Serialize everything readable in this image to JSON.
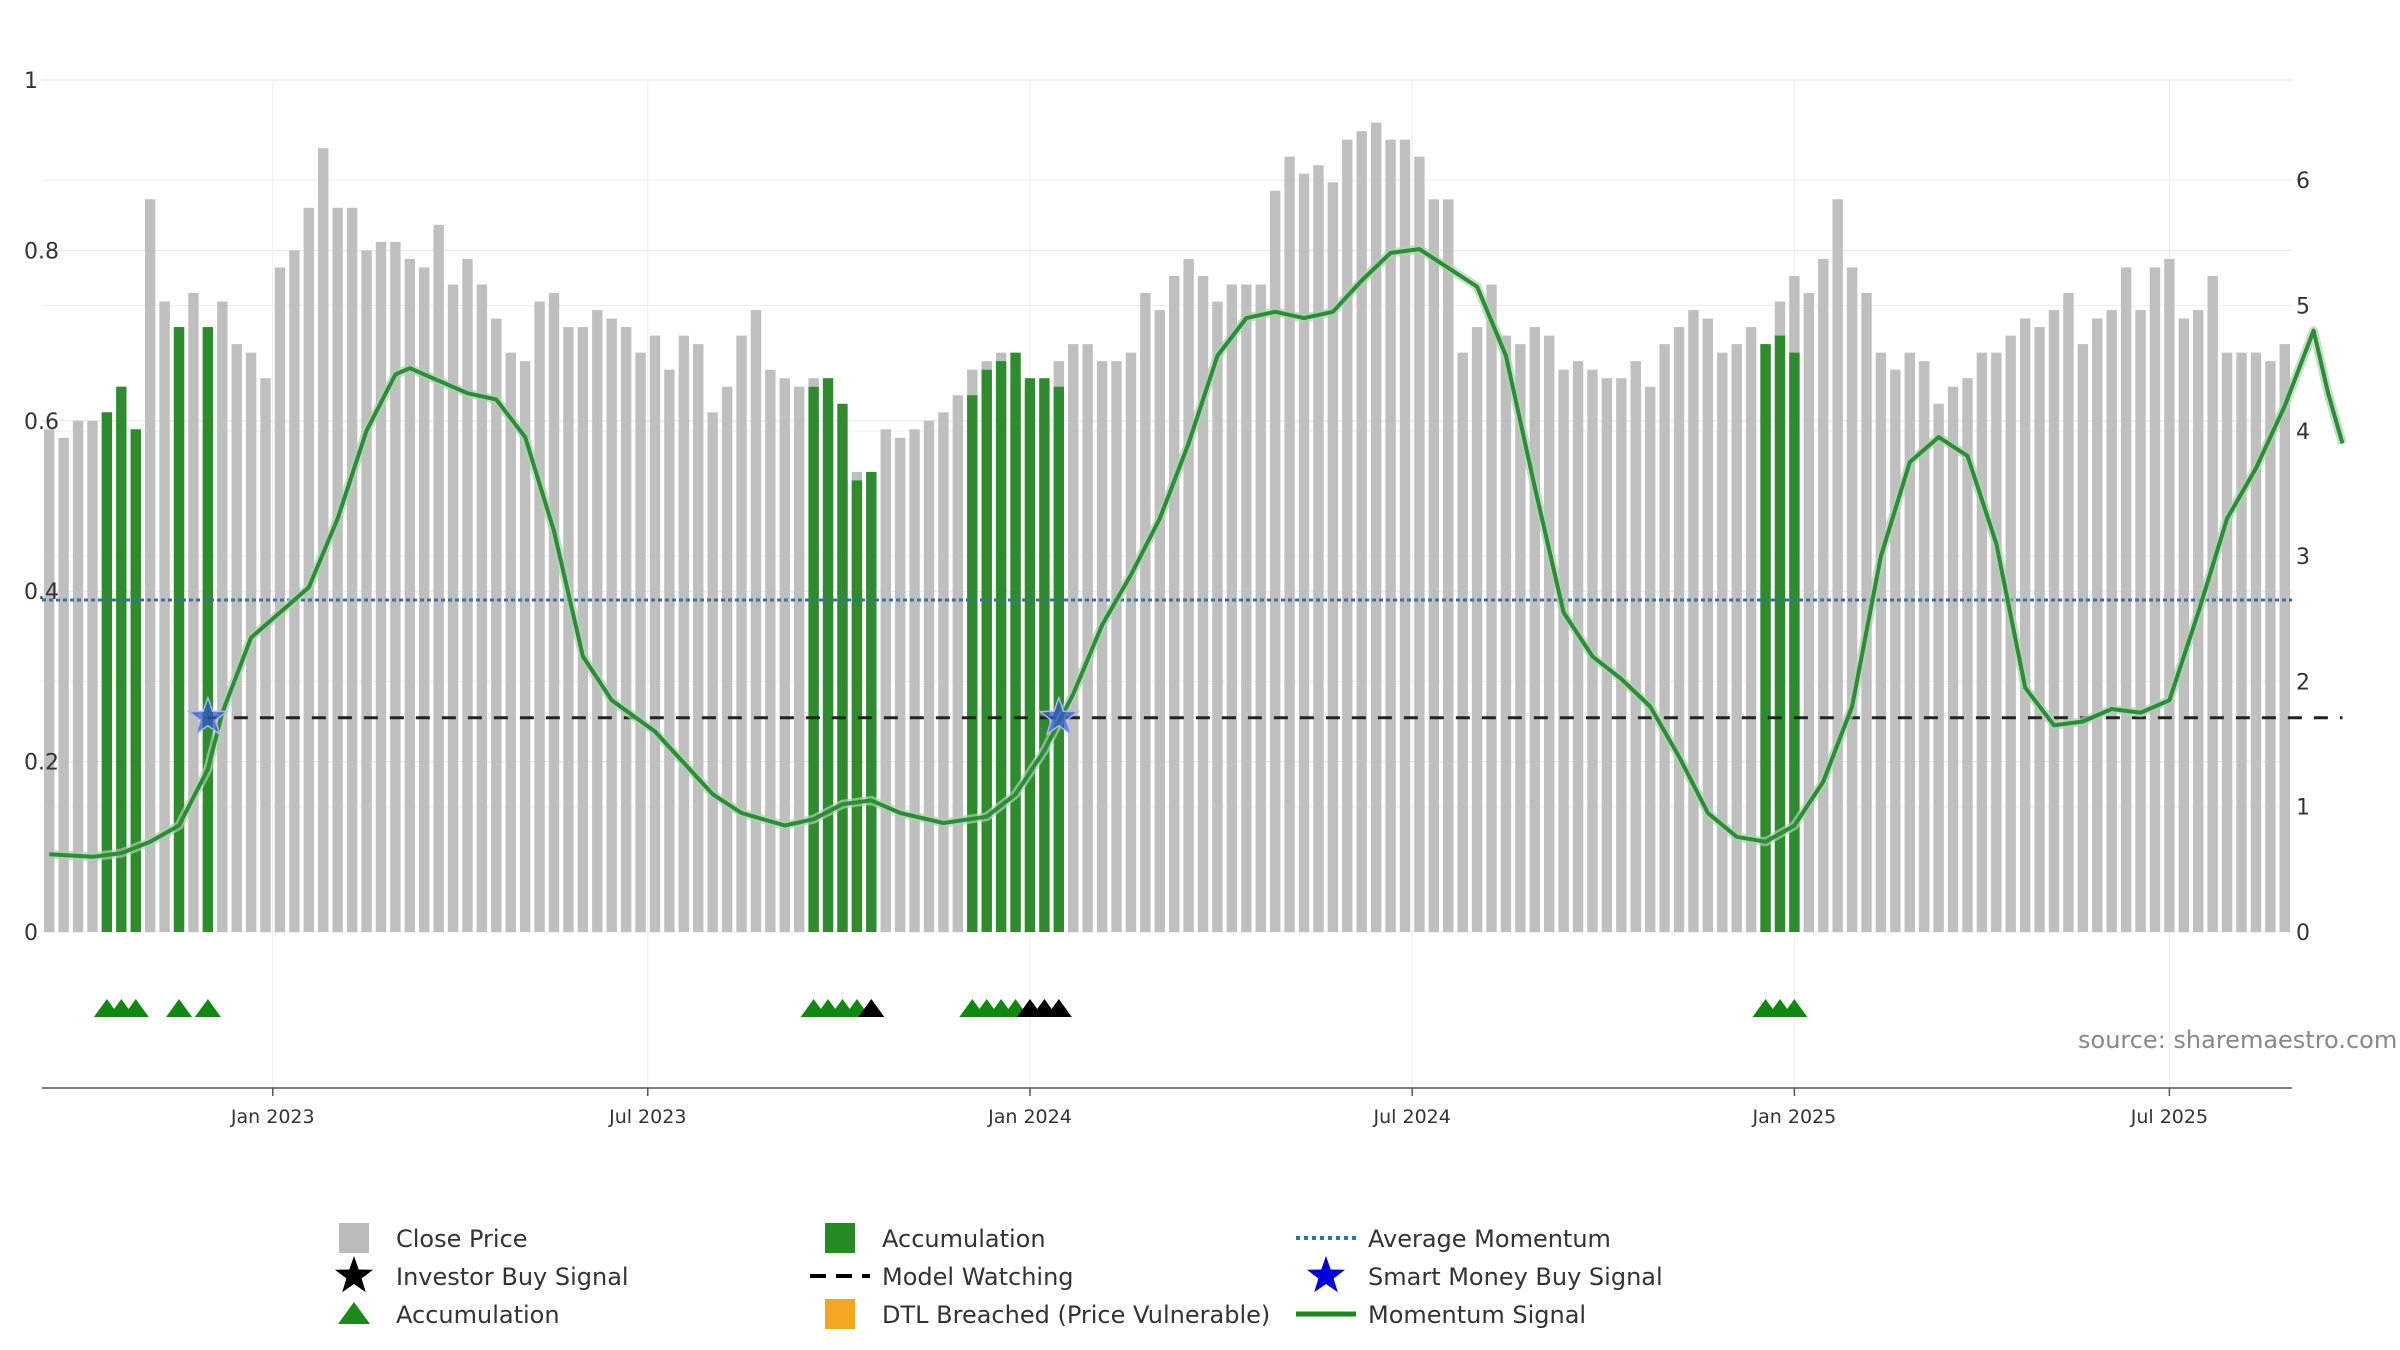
{
  "chart_data": {
    "type": "bar",
    "source_text": "source: sharemaestro.com",
    "left_axis": {
      "ylim": [
        0,
        1
      ],
      "ticks": [
        0,
        0.2,
        0.4,
        0.6,
        0.8,
        1
      ],
      "tick_labels": [
        "0",
        "0.2",
        "0.4",
        "0.6",
        "0.8",
        "1"
      ]
    },
    "right_axis": {
      "ylim": [
        0,
        6.8
      ],
      "ticks": [
        0,
        1,
        2,
        3,
        4,
        5,
        6
      ],
      "tick_labels": [
        "0",
        "1",
        "2",
        "3",
        "4",
        "5",
        "6"
      ]
    },
    "x_axis": {
      "start_index": 0,
      "end_index": 159,
      "ticks": [
        {
          "index": 15.5,
          "label": "Jan 2023"
        },
        {
          "index": 41.5,
          "label": "Jul 2023"
        },
        {
          "index": 68,
          "label": "Jan 2024"
        },
        {
          "index": 94.5,
          "label": "Jul 2024"
        },
        {
          "index": 121,
          "label": "Jan 2025"
        },
        {
          "index": 147,
          "label": "Jul 2025"
        }
      ]
    },
    "close_price": [
      0.59,
      0.58,
      0.6,
      0.6,
      0.61,
      0.64,
      0.59,
      0.86,
      0.74,
      0.71,
      0.75,
      0.71,
      0.74,
      0.69,
      0.68,
      0.65,
      0.78,
      0.8,
      0.85,
      0.92,
      0.85,
      0.85,
      0.8,
      0.81,
      0.81,
      0.79,
      0.78,
      0.83,
      0.76,
      0.79,
      0.76,
      0.72,
      0.68,
      0.67,
      0.74,
      0.75,
      0.71,
      0.71,
      0.73,
      0.72,
      0.71,
      0.68,
      0.7,
      0.66,
      0.7,
      0.69,
      0.61,
      0.64,
      0.7,
      0.73,
      0.66,
      0.65,
      0.64,
      0.65,
      0.62,
      0.53,
      0.54,
      0.54,
      0.59,
      0.58,
      0.59,
      0.6,
      0.61,
      0.63,
      0.66,
      0.67,
      0.68,
      0.65,
      0.64,
      0.64,
      0.67,
      0.69,
      0.69,
      0.67,
      0.67,
      0.68,
      0.75,
      0.73,
      0.77,
      0.79,
      0.77,
      0.74,
      0.76,
      0.76,
      0.76,
      0.87,
      0.91,
      0.89,
      0.9,
      0.88,
      0.93,
      0.94,
      0.95,
      0.93,
      0.93,
      0.91,
      0.86,
      0.86,
      0.68,
      0.71,
      0.76,
      0.7,
      0.69,
      0.71,
      0.7,
      0.66,
      0.67,
      0.66,
      0.65,
      0.65,
      0.67,
      0.64,
      0.69,
      0.71,
      0.73,
      0.72,
      0.68,
      0.69,
      0.71,
      0.69,
      0.74,
      0.77,
      0.75,
      0.79,
      0.86,
      0.78,
      0.75,
      0.68,
      0.66,
      0.68,
      0.67,
      0.62,
      0.64,
      0.65,
      0.68,
      0.68,
      0.7,
      0.72,
      0.71,
      0.73,
      0.75,
      0.69,
      0.72,
      0.73,
      0.78,
      0.73,
      0.78,
      0.79,
      0.72,
      0.73,
      0.77,
      0.68,
      0.68,
      0.68,
      0.67,
      0.69
    ],
    "accumulation_bars": [
      {
        "index": 4,
        "value": 0.61
      },
      {
        "index": 5,
        "value": 0.64
      },
      {
        "index": 6,
        "value": 0.59
      },
      {
        "index": 9,
        "value": 0.71
      },
      {
        "index": 11,
        "value": 0.71
      },
      {
        "index": 53,
        "value": 0.64
      },
      {
        "index": 54,
        "value": 0.65
      },
      {
        "index": 55,
        "value": 0.62
      },
      {
        "index": 56,
        "value": 0.53
      },
      {
        "index": 57,
        "value": 0.54
      },
      {
        "index": 64,
        "value": 0.63
      },
      {
        "index": 65,
        "value": 0.66
      },
      {
        "index": 66,
        "value": 0.67
      },
      {
        "index": 67,
        "value": 0.68
      },
      {
        "index": 68,
        "value": 0.65
      },
      {
        "index": 69,
        "value": 0.65
      },
      {
        "index": 70,
        "value": 0.64
      },
      {
        "index": 119,
        "value": 0.69
      },
      {
        "index": 120,
        "value": 0.7
      },
      {
        "index": 121,
        "value": 0.68
      }
    ],
    "momentum_signal": [
      [
        0,
        0.62
      ],
      [
        3,
        0.6
      ],
      [
        5,
        0.63
      ],
      [
        7,
        0.72
      ],
      [
        9,
        0.85
      ],
      [
        11,
        1.3
      ],
      [
        12,
        1.75
      ],
      [
        14,
        2.35
      ],
      [
        16,
        2.55
      ],
      [
        18,
        2.75
      ],
      [
        20,
        3.3
      ],
      [
        22,
        4.0
      ],
      [
        24,
        4.45
      ],
      [
        25,
        4.5
      ],
      [
        27,
        4.4
      ],
      [
        29,
        4.3
      ],
      [
        31,
        4.25
      ],
      [
        33,
        3.95
      ],
      [
        35,
        3.2
      ],
      [
        37,
        2.2
      ],
      [
        39,
        1.85
      ],
      [
        42,
        1.6
      ],
      [
        44,
        1.35
      ],
      [
        46,
        1.1
      ],
      [
        48,
        0.95
      ],
      [
        51,
        0.85
      ],
      [
        53,
        0.9
      ],
      [
        55,
        1.02
      ],
      [
        57,
        1.05
      ],
      [
        59,
        0.95
      ],
      [
        62,
        0.87
      ],
      [
        65,
        0.92
      ],
      [
        67,
        1.1
      ],
      [
        69,
        1.45
      ],
      [
        71,
        1.9
      ],
      [
        73,
        2.45
      ],
      [
        75,
        2.85
      ],
      [
        77,
        3.3
      ],
      [
        79,
        3.9
      ],
      [
        81,
        4.6
      ],
      [
        83,
        4.9
      ],
      [
        85,
        4.95
      ],
      [
        87,
        4.9
      ],
      [
        89,
        4.95
      ],
      [
        91,
        5.2
      ],
      [
        93,
        5.42
      ],
      [
        95,
        5.45
      ],
      [
        97,
        5.3
      ],
      [
        99,
        5.15
      ],
      [
        101,
        4.6
      ],
      [
        103,
        3.55
      ],
      [
        105,
        2.55
      ],
      [
        107,
        2.2
      ],
      [
        109,
        2.02
      ],
      [
        111,
        1.8
      ],
      [
        113,
        1.4
      ],
      [
        115,
        0.95
      ],
      [
        117,
        0.76
      ],
      [
        119,
        0.72
      ],
      [
        121,
        0.85
      ],
      [
        123,
        1.2
      ],
      [
        125,
        1.8
      ],
      [
        127,
        3.0
      ],
      [
        129,
        3.75
      ],
      [
        131,
        3.95
      ],
      [
        133,
        3.8
      ],
      [
        135,
        3.1
      ],
      [
        137,
        1.95
      ],
      [
        139,
        1.65
      ],
      [
        141,
        1.68
      ],
      [
        143,
        1.78
      ],
      [
        145,
        1.75
      ],
      [
        147,
        1.85
      ],
      [
        149,
        2.55
      ],
      [
        151,
        3.3
      ],
      [
        153,
        3.7
      ],
      [
        155,
        4.2
      ],
      [
        156,
        4.5
      ],
      [
        157,
        4.8
      ],
      [
        158,
        4.3
      ],
      [
        159,
        3.9
      ]
    ],
    "average_momentum": 2.65,
    "model_watching": {
      "value": 1.71,
      "start_index": 11,
      "end_index": 159
    },
    "smart_money_buy_signals": [
      {
        "index": 11,
        "value": 1.71
      },
      {
        "index": 70,
        "value": 1.71
      }
    ],
    "accumulation_markers": [
      4,
      5,
      6,
      9,
      11,
      53,
      54,
      55,
      56,
      64,
      65,
      66,
      67,
      119,
      120,
      121
    ],
    "investor_buy_markers": [
      57,
      68,
      69,
      70
    ],
    "legend": [
      {
        "label": "Close Price",
        "marker": "square",
        "color": "#bbbbbb"
      },
      {
        "label": "Investor Buy Signal",
        "marker": "star",
        "color": "#000000"
      },
      {
        "label": "Accumulation",
        "marker": "triangle",
        "color": "#1a8a1a"
      },
      {
        "label": "Accumulation",
        "marker": "square",
        "color": "#228b22"
      },
      {
        "label": "Model Watching",
        "marker": "dash",
        "color": "#000000"
      },
      {
        "label": "DTL Breached (Price Vulnerable)",
        "marker": "square",
        "color": "#f5a623"
      },
      {
        "label": "Average Momentum",
        "marker": "dotted",
        "color": "#1f77b4"
      },
      {
        "label": "Smart Money Buy Signal",
        "marker": "star",
        "color": "#0000dd"
      },
      {
        "label": "Momentum Signal",
        "marker": "line",
        "color": "#1a8a1a"
      }
    ],
    "colors": {
      "close_price": "#bfbfbf",
      "accumulation": "#2e8b2e",
      "momentum": "#2e8b3a",
      "average_momentum": "#3a6fa0",
      "model_watching": "#222222",
      "smart_money": "#3355cc",
      "accumulation_marker": "#118811",
      "investor_marker": "#000000",
      "grid": "#e6e6e6",
      "axis": "#555555"
    }
  }
}
